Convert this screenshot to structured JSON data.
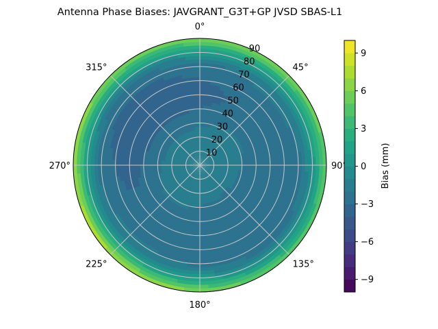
{
  "chart_data": {
    "type": "heatmap",
    "projection": "polar",
    "title": "Antenna Phase Biases: JAVGRANT_G3T+GP JVSD SBAS-L1",
    "azimuth_ticks": [
      "0°",
      "45°",
      "90°",
      "135°",
      "180°",
      "225°",
      "270°",
      "315°"
    ],
    "zenith_ticks": [
      "10",
      "20",
      "30",
      "40",
      "50",
      "60",
      "70",
      "80",
      "90"
    ],
    "zenith_range": [
      0,
      90
    ],
    "grid": true,
    "colorbar": {
      "label": "Bias (mm)",
      "range": [
        -10,
        10
      ],
      "ticks": [
        "−9",
        "−6",
        "−3",
        "0",
        "3",
        "6",
        "9"
      ],
      "colormap": "viridis",
      "levels": 20,
      "position": "right"
    },
    "field_description": {
      "center_bias_mm": -1,
      "edge_bias_mm": 6,
      "min_bias_mm": -3.5
    }
  }
}
